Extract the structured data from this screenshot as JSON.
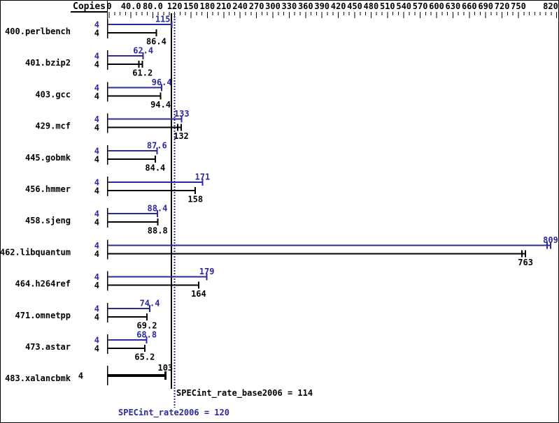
{
  "header": {
    "copies_label": "Copies"
  },
  "footer": {
    "base_line_label": "SPECint_rate_base2006 = 114",
    "peak_line_label": "SPECint_rate2006 = 120"
  },
  "colors": {
    "peak_blue": "#2b2b9e",
    "base_black": "#000000",
    "background": "#ffffff",
    "border": "#000000"
  },
  "chart_data": {
    "type": "bar",
    "orientation": "horizontal",
    "title": "",
    "xlabel": "",
    "ylabel": "Copies",
    "axis": {
      "min": 0,
      "max": 820,
      "minor_step": 10,
      "major_values": [
        0,
        40,
        80,
        120,
        150,
        180,
        210,
        240,
        270,
        300,
        330,
        360,
        390,
        420,
        450,
        480,
        510,
        540,
        570,
        600,
        630,
        660,
        690,
        720,
        750,
        820
      ],
      "major_labels": [
        "0",
        "40.0",
        "80.0",
        "120",
        "150",
        "180",
        "210",
        "240",
        "270",
        "300",
        "330",
        "360",
        "390",
        "420",
        "450",
        "480",
        "510",
        "540",
        "570",
        "600",
        "630",
        "660",
        "690",
        "720",
        "750",
        "820"
      ]
    },
    "series": [
      {
        "name": "SPECint_rate2006 (peak)",
        "color": "#2b2b9e"
      },
      {
        "name": "SPECint_rate_base2006 (base)",
        "color": "#000000"
      }
    ],
    "benchmarks": [
      {
        "name": "400.perlbench",
        "copies": 4,
        "peak": 115,
        "peak_label": "115",
        "base": 86.4,
        "base_label": "86.4",
        "peak_label_dx": -13
      },
      {
        "name": "401.bzip2",
        "copies": 4,
        "peak": 62.4,
        "peak_label": "62.4",
        "base": 61.2,
        "base_label": "61.2",
        "base_cap": "double"
      },
      {
        "name": "403.gcc",
        "copies": 4,
        "peak": 96.4,
        "peak_label": "96.4",
        "base": 94.4,
        "base_label": "94.4"
      },
      {
        "name": "429.mcf",
        "copies": 4,
        "peak": 133,
        "peak_label": "133",
        "base": 132,
        "base_label": "132",
        "base_cap": "double"
      },
      {
        "name": "445.gobmk",
        "copies": 4,
        "peak": 87.6,
        "peak_label": "87.6",
        "base": 84.4,
        "base_label": "84.4"
      },
      {
        "name": "456.hmmer",
        "copies": 4,
        "peak": 171,
        "peak_label": "171",
        "base": 158,
        "base_label": "158"
      },
      {
        "name": "458.sjeng",
        "copies": 4,
        "peak": 88.4,
        "peak_label": "88.4",
        "base": 88.8,
        "base_label": "88.8"
      },
      {
        "name": "462.libquantum",
        "copies": 4,
        "peak": 809,
        "peak_label": "809",
        "base": 763,
        "base_label": "763",
        "peak_cap": "double",
        "base_cap": "double"
      },
      {
        "name": "464.h264ref",
        "copies": 4,
        "peak": 179,
        "peak_label": "179",
        "base": 164,
        "base_label": "164"
      },
      {
        "name": "471.omnetpp",
        "copies": 4,
        "peak": 74.4,
        "peak_label": "74.4",
        "base": 69.2,
        "base_label": "69.2"
      },
      {
        "name": "473.astar",
        "copies": 4,
        "peak": 68.8,
        "peak_label": "68.8",
        "base": 65.2,
        "base_label": "65.2"
      },
      {
        "name": "483.xalancbmk",
        "copies": 4,
        "single": true,
        "base": 103,
        "base_label": "103"
      }
    ],
    "reference_lines": [
      {
        "label": "SPECint_rate_base2006 = 114",
        "value": 114,
        "color": "#000000",
        "style": "solid"
      },
      {
        "label": "SPECint_rate2006 = 120",
        "value": 120,
        "color": "#2b2b9e",
        "style": "dotted"
      }
    ],
    "legend_position": "none",
    "grid": false
  }
}
